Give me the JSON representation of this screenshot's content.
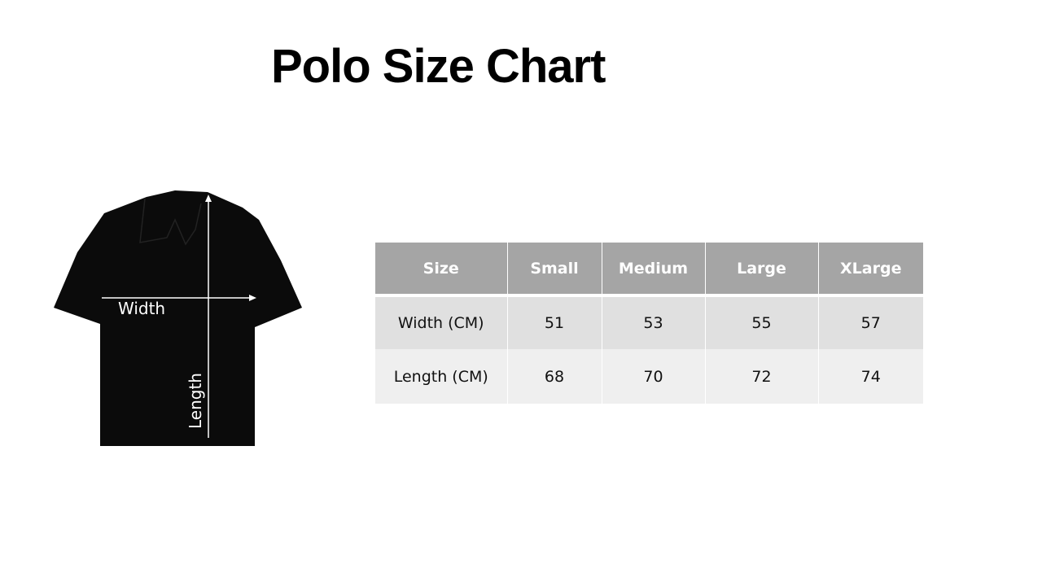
{
  "title": "Polo Size Chart",
  "diagram": {
    "width_label": "Width",
    "length_label": "Length"
  },
  "table": {
    "headers": [
      "Size",
      "Small",
      "Medium",
      "Large",
      "XLarge"
    ],
    "rows": [
      [
        "Width (CM)",
        "51",
        "53",
        "55",
        "57"
      ],
      [
        "Length (CM)",
        "68",
        "70",
        "72",
        "74"
      ]
    ]
  },
  "colors": {
    "header_bg": "#a5a5a5",
    "row1_bg": "#e0e0e0",
    "row2_bg": "#efefef",
    "shirt": "#0b0b0b"
  }
}
